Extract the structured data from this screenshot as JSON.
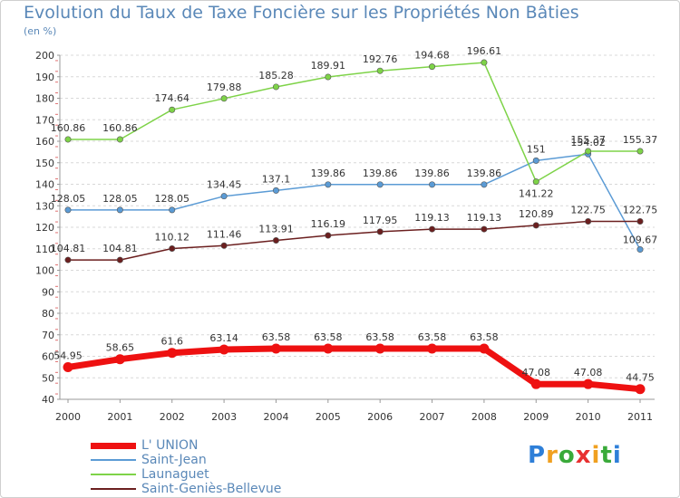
{
  "header": {
    "title": "Evolution du Taux de Taxe Foncière sur les Propriétés Non Bâties",
    "subtitle": "(en %)"
  },
  "brand": {
    "text": "Proxiti",
    "letters": [
      {
        "ch": "P",
        "color": "#2e7fd8"
      },
      {
        "ch": "r",
        "color": "#f0a020"
      },
      {
        "ch": "o",
        "color": "#3aaa3a"
      },
      {
        "ch": "x",
        "color": "#e83030"
      },
      {
        "ch": "i",
        "color": "#f0a020"
      },
      {
        "ch": "t",
        "color": "#3aaa3a"
      },
      {
        "ch": "i",
        "color": "#2e7fd8"
      }
    ]
  },
  "chart_data": {
    "type": "line",
    "x": [
      "2000",
      "2001",
      "2002",
      "2003",
      "2004",
      "2005",
      "2006",
      "2007",
      "2008",
      "2009",
      "2010",
      "2011"
    ],
    "ylim": [
      40,
      200
    ],
    "yticks": [
      40,
      50,
      60,
      70,
      80,
      90,
      100,
      110,
      120,
      130,
      140,
      150,
      160,
      170,
      180,
      190,
      200
    ],
    "grid": "horizontal",
    "legend_position": "bottom-left",
    "series": [
      {
        "name": "L' UNION",
        "color": "#ee1111",
        "values": [
          54.95,
          58.65,
          61.6,
          63.14,
          63.58,
          63.58,
          63.58,
          63.58,
          63.58,
          47.08,
          47.08,
          44.75
        ],
        "labels": [
          "54.95",
          "58.65",
          "61.6",
          "63.14",
          "63.58",
          "63.58",
          "63.58",
          "63.58",
          "63.58",
          "47.08",
          "47.08",
          "44.75"
        ]
      },
      {
        "name": "Saint-Jean",
        "color": "#5b9bd5",
        "values": [
          128.05,
          128.05,
          128.05,
          134.45,
          137.1,
          139.86,
          139.86,
          139.86,
          139.86,
          151,
          154.02,
          109.67
        ],
        "labels": [
          "128.05",
          "128.05",
          "128.05",
          "134.45",
          "137.1",
          "139.86",
          "139.86",
          "139.86",
          "139.86",
          "151",
          "154.02",
          "109.67"
        ]
      },
      {
        "name": "Launaguet",
        "color": "#7ed348",
        "values": [
          160.86,
          160.86,
          174.64,
          179.88,
          185.28,
          189.91,
          192.76,
          194.68,
          196.61,
          141.22,
          155.37,
          155.37
        ],
        "labels": [
          "160.86",
          "160.86",
          "174.64",
          "179.88",
          "185.28",
          "189.91",
          "192.76",
          "194.68",
          "196.61",
          "141.22",
          "155.37",
          "155.37"
        ]
      },
      {
        "name": "Saint-Geniès-Bellevue",
        "color": "#6b1f1f",
        "values": [
          104.81,
          104.81,
          110.12,
          111.46,
          113.91,
          116.19,
          117.95,
          119.13,
          119.13,
          120.89,
          122.75,
          122.75
        ],
        "labels": [
          "104.81",
          "104.81",
          "110.12",
          "111.46",
          "113.91",
          "116.19",
          "117.95",
          "119.13",
          "119.13",
          "120.89",
          "122.75",
          "122.75"
        ]
      }
    ]
  }
}
